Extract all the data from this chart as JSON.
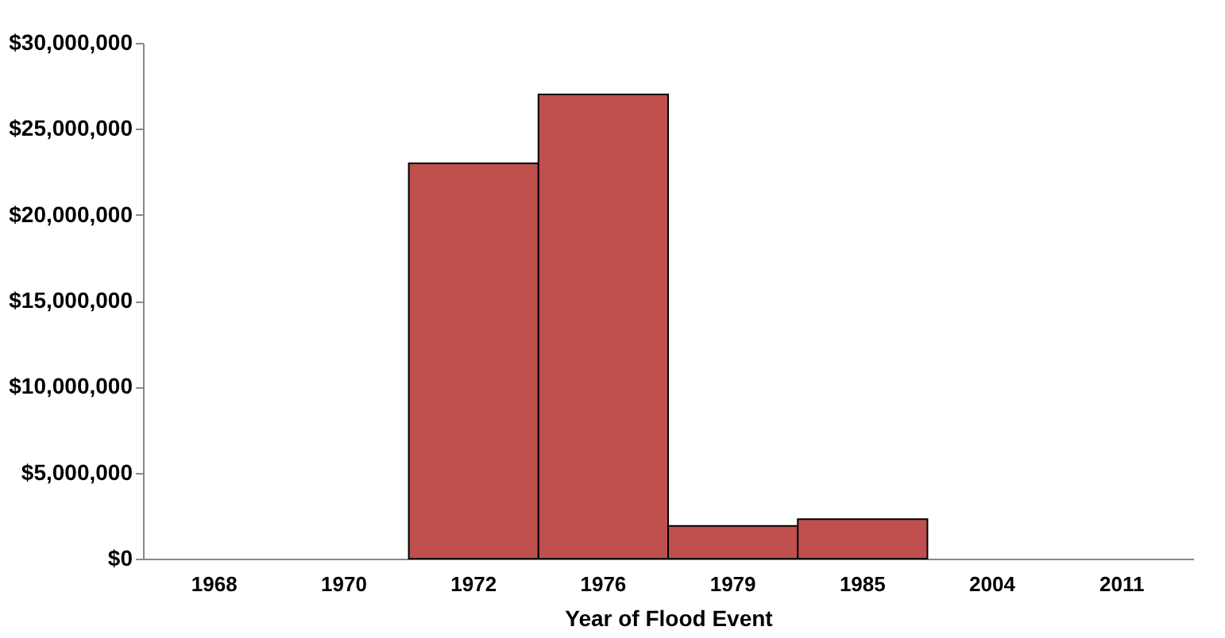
{
  "chart_data": {
    "type": "bar",
    "xlabel": "Year of Flood Event",
    "categories": [
      "1968",
      "1970",
      "1972",
      "1976",
      "1979",
      "1985",
      "2004",
      "2011"
    ],
    "values": [
      0,
      0,
      23000000,
      27000000,
      1900000,
      2300000,
      0,
      0
    ],
    "color": "#c0504d",
    "ylim": [
      0,
      30000000
    ],
    "yticks": [
      {
        "value": 0,
        "label": "$0"
      },
      {
        "value": 5000000,
        "label": "$5,000,000"
      },
      {
        "value": 10000000,
        "label": "$10,000,000"
      },
      {
        "value": 15000000,
        "label": "$15,000,000"
      },
      {
        "value": 20000000,
        "label": "$20,000,000"
      },
      {
        "value": 25000000,
        "label": "$25,000,000"
      },
      {
        "value": 30000000,
        "label": "$30,000,000"
      }
    ],
    "grid": false
  }
}
